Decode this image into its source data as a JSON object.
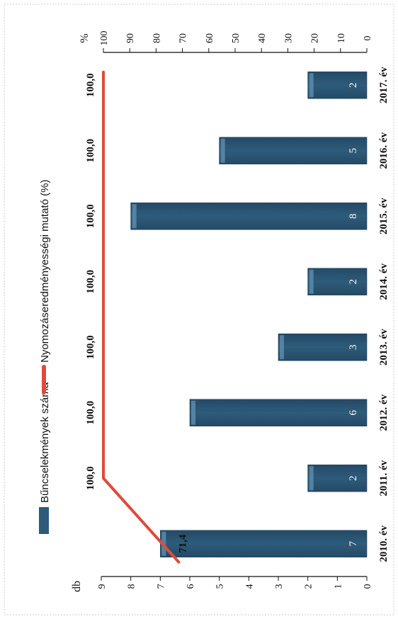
{
  "chart_data": {
    "type": "bar",
    "orientation": "rotated-90-ccw",
    "categories": [
      "2010. év",
      "2011. év",
      "2012. év",
      "2013. év",
      "2014. év",
      "2015. év",
      "2016. év",
      "2017. év"
    ],
    "series": [
      {
        "name": "Bűncselekmények száma",
        "type": "bar",
        "axis": "left",
        "color": "#2e5b7b",
        "values": [
          7,
          2,
          6,
          3,
          2,
          8,
          5,
          2
        ],
        "data_labels": [
          "7",
          "2",
          "6",
          "3",
          "2",
          "8",
          "5",
          "2"
        ]
      },
      {
        "name": "Nyomozáseredményességi mutató (%)",
        "type": "line",
        "axis": "right",
        "color": "#e04a3c",
        "values": [
          71.4,
          100,
          100,
          100,
          100,
          100,
          100,
          100
        ],
        "data_labels": [
          "71,4",
          "100,0",
          "100,0",
          "100,0",
          "100,0",
          "100,0",
          "100,0",
          "100,0"
        ]
      }
    ],
    "y_left": {
      "label": "db",
      "ylim": [
        0,
        9
      ],
      "ticks": [
        "0",
        "1",
        "2",
        "3",
        "4",
        "5",
        "6",
        "7",
        "8",
        "9"
      ]
    },
    "y_right": {
      "label": "%",
      "ylim": [
        0,
        100
      ],
      "ticks": [
        "0",
        "10",
        "20",
        "30",
        "40",
        "50",
        "60",
        "70",
        "80",
        "90",
        "100"
      ]
    },
    "legend_position": "top",
    "grid": false
  }
}
